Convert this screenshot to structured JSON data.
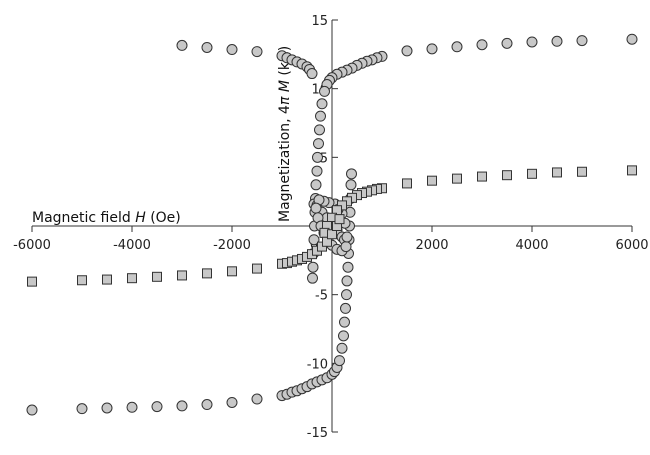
{
  "chart_data": {
    "type": "scatter",
    "xlabel_prefix": "Magnetic field ",
    "xlabel_symbol": "H",
    "xlabel_unit": " (Oe)",
    "ylabel_prefix": "Magnetization, 4",
    "ylabel_symbol": "π M",
    "ylabel_unit": " (kG)",
    "xlim": [
      -6000,
      6000
    ],
    "ylim": [
      -15,
      15
    ],
    "x_ticks": [
      -6000,
      -4000,
      -2000,
      0,
      2000,
      4000,
      6000
    ],
    "y_ticks": [
      -15,
      -10,
      -5,
      0,
      5,
      10,
      15
    ],
    "x_tick_labels": [
      "-6000",
      "-4000",
      "-2000",
      "0",
      "2000",
      "4000",
      "6000"
    ],
    "y_tick_labels": [
      "-15",
      "-10",
      "-5",
      "0",
      "5",
      "10",
      "15"
    ],
    "grid": false,
    "series": [
      {
        "marker": "circle",
        "color": "#c8c8c8",
        "edge": "#333333",
        "points": [
          [
            6000,
            13.6
          ],
          [
            5000,
            13.5
          ],
          [
            4500,
            13.45
          ],
          [
            4000,
            13.4
          ],
          [
            3500,
            13.3
          ],
          [
            3000,
            13.2
          ],
          [
            2500,
            13.05
          ],
          [
            2000,
            12.9
          ],
          [
            1500,
            12.75
          ],
          [
            1000,
            12.35
          ],
          [
            900,
            12.25
          ],
          [
            800,
            12.1
          ],
          [
            700,
            12.0
          ],
          [
            600,
            11.85
          ],
          [
            500,
            11.7
          ],
          [
            400,
            11.5
          ],
          [
            300,
            11.35
          ],
          [
            200,
            11.2
          ],
          [
            100,
            11.05
          ],
          [
            0,
            10.8
          ],
          [
            -50,
            10.6
          ],
          [
            -100,
            10.3
          ],
          [
            -150,
            9.8
          ],
          [
            -200,
            8.9
          ],
          [
            -230,
            8.0
          ],
          [
            -250,
            7.0
          ],
          [
            -270,
            6.0
          ],
          [
            -290,
            5.0
          ],
          [
            -300,
            4.0
          ],
          [
            -320,
            3.0
          ],
          [
            -330,
            2.0
          ],
          [
            -340,
            1.0
          ],
          [
            -350,
            0.0
          ],
          [
            -360,
            -1.0
          ],
          [
            -370,
            -2.0
          ],
          [
            -380,
            -3.0
          ],
          [
            -390,
            -3.8
          ],
          [
            -3000,
            13.15
          ],
          [
            -2500,
            13.0
          ],
          [
            -2000,
            12.85
          ],
          [
            -1500,
            12.7
          ],
          [
            -1000,
            12.4
          ],
          [
            -900,
            12.25
          ],
          [
            -800,
            12.1
          ],
          [
            -700,
            11.95
          ],
          [
            -600,
            11.8
          ],
          [
            -500,
            11.6
          ],
          [
            -450,
            11.4
          ],
          [
            -400,
            11.1
          ],
          [
            -6000,
            -13.4
          ],
          [
            -5000,
            -13.3
          ],
          [
            -4500,
            -13.25
          ],
          [
            -4000,
            -13.2
          ],
          [
            -3500,
            -13.15
          ],
          [
            -3000,
            -13.1
          ],
          [
            -2500,
            -13.0
          ],
          [
            -2000,
            -12.85
          ],
          [
            -1500,
            -12.6
          ],
          [
            -1000,
            -12.35
          ],
          [
            -900,
            -12.25
          ],
          [
            -800,
            -12.1
          ],
          [
            -700,
            -12.0
          ],
          [
            -600,
            -11.85
          ],
          [
            -500,
            -11.7
          ],
          [
            -400,
            -11.5
          ],
          [
            -300,
            -11.35
          ],
          [
            -200,
            -11.2
          ],
          [
            -100,
            -11.05
          ],
          [
            0,
            -10.8
          ],
          [
            50,
            -10.6
          ],
          [
            100,
            -10.3
          ],
          [
            150,
            -9.8
          ],
          [
            200,
            -8.9
          ],
          [
            230,
            -8.0
          ],
          [
            250,
            -7.0
          ],
          [
            270,
            -6.0
          ],
          [
            290,
            -5.0
          ],
          [
            300,
            -4.0
          ],
          [
            320,
            -3.0
          ],
          [
            330,
            -2.0
          ],
          [
            340,
            -1.0
          ],
          [
            350,
            0.0
          ],
          [
            360,
            1.0
          ],
          [
            370,
            2.0
          ],
          [
            380,
            3.0
          ],
          [
            390,
            3.8
          ],
          [
            -360,
            1.6
          ],
          [
            -300,
            1.5
          ],
          [
            -200,
            1.0
          ],
          [
            -100,
            0.6
          ],
          [
            0,
            0.2
          ],
          [
            100,
            -0.3
          ],
          [
            200,
            -0.8
          ],
          [
            250,
            -1.0
          ],
          [
            160,
            1.3
          ],
          [
            60,
            1.6
          ],
          [
            -60,
            1.7
          ],
          [
            -160,
            1.8
          ],
          [
            -260,
            1.9
          ],
          [
            -320,
            1.3
          ],
          [
            -280,
            0.6
          ],
          [
            -220,
            0.0
          ],
          [
            -160,
            -0.5
          ],
          [
            -80,
            -1.0
          ],
          [
            0,
            -1.4
          ],
          [
            100,
            -1.7
          ],
          [
            200,
            -1.8
          ],
          [
            280,
            -1.5
          ],
          [
            300,
            -0.8
          ],
          [
            260,
            0.2
          ],
          [
            200,
            0.9
          ],
          [
            120,
            1.2
          ]
        ]
      },
      {
        "marker": "square",
        "color": "#c8c8c8",
        "edge": "#333333",
        "points": [
          [
            6000,
            4.05
          ],
          [
            5000,
            3.95
          ],
          [
            4500,
            3.9
          ],
          [
            4000,
            3.8
          ],
          [
            3500,
            3.7
          ],
          [
            3000,
            3.6
          ],
          [
            2500,
            3.45
          ],
          [
            2000,
            3.3
          ],
          [
            1500,
            3.1
          ],
          [
            1000,
            2.75
          ],
          [
            900,
            2.7
          ],
          [
            800,
            2.6
          ],
          [
            700,
            2.5
          ],
          [
            600,
            2.4
          ],
          [
            500,
            2.25
          ],
          [
            400,
            2.05
          ],
          [
            300,
            1.8
          ],
          [
            200,
            1.5
          ],
          [
            100,
            1.15
          ],
          [
            0,
            0.6
          ],
          [
            -100,
            0.0
          ],
          [
            -150,
            -0.5
          ],
          [
            -6000,
            -4.05
          ],
          [
            -5000,
            -3.95
          ],
          [
            -4500,
            -3.9
          ],
          [
            -4000,
            -3.8
          ],
          [
            -3500,
            -3.7
          ],
          [
            -3000,
            -3.6
          ],
          [
            -2500,
            -3.45
          ],
          [
            -2000,
            -3.3
          ],
          [
            -1500,
            -3.1
          ],
          [
            -1000,
            -2.75
          ],
          [
            -900,
            -2.7
          ],
          [
            -800,
            -2.6
          ],
          [
            -700,
            -2.5
          ],
          [
            -600,
            -2.4
          ],
          [
            -500,
            -2.25
          ],
          [
            -400,
            -2.05
          ],
          [
            -300,
            -1.8
          ],
          [
            -200,
            -1.5
          ],
          [
            -100,
            -1.15
          ],
          [
            0,
            -0.6
          ],
          [
            100,
            0.0
          ],
          [
            150,
            0.5
          ]
        ]
      }
    ]
  }
}
